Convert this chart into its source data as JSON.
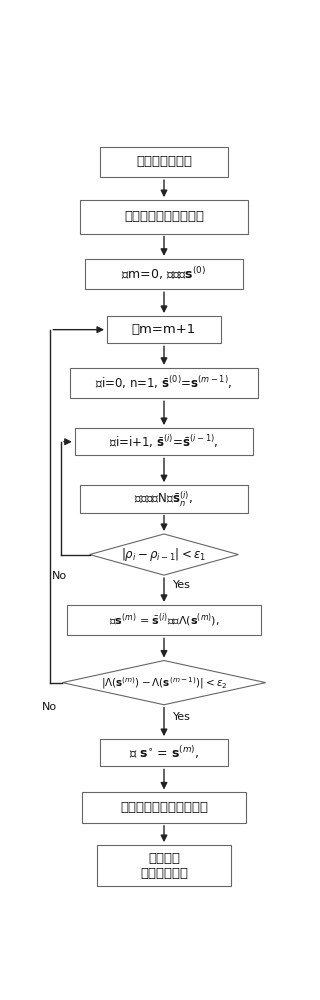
{
  "fig_width": 3.2,
  "fig_height": 10.0,
  "dpi": 100,
  "bg_color": "#ffffff",
  "box_edge": "#666666",
  "arrow_color": "#222222",
  "text_color": "#111111",
  "boxes": {
    "b1": [
      0.5,
      0.945,
      0.52,
      0.04
    ],
    "b2": [
      0.5,
      0.873,
      0.68,
      0.044
    ],
    "b3": [
      0.5,
      0.798,
      0.64,
      0.04
    ],
    "b4": [
      0.5,
      0.725,
      0.46,
      0.036
    ],
    "b5": [
      0.5,
      0.655,
      0.76,
      0.04
    ],
    "b6": [
      0.5,
      0.578,
      0.72,
      0.036
    ],
    "b7": [
      0.5,
      0.503,
      0.68,
      0.036
    ],
    "d1": [
      0.5,
      0.43,
      0.6,
      0.054
    ],
    "b8": [
      0.5,
      0.344,
      0.78,
      0.04
    ],
    "d2": [
      0.5,
      0.262,
      0.82,
      0.058
    ],
    "b9": [
      0.5,
      0.17,
      0.52,
      0.036
    ],
    "b10": [
      0.5,
      0.098,
      0.66,
      0.04
    ],
    "b11": [
      0.5,
      0.022,
      0.54,
      0.054
    ]
  },
  "texts": {
    "b1": "初始化系统参数",
    "b2": "构建优化问题数学模型",
    "b3": "令m=0, 初始化$\\mathbf{s}^{(0)}$",
    "b4": "令m=m+1",
    "b5": "令i=0, n=1, $\\bar{\\mathbf{s}}^{(0)}$=$\\mathbf{s}^{(m-1)}$,",
    "b6": "令i=i+1, $\\bar{\\mathbf{s}}^{(i)}$=$\\bar{\\mathbf{s}}^{(i-1)}$,",
    "b7": "逐元计算N个$\\bar{\\mathbf{s}}_n^{(i)}$,",
    "d1": "$|\\rho_i - \\rho_{i-1}| < \\varepsilon_1$",
    "b8": "令$\\mathbf{s}^{(m)}$ = $\\bar{\\mathbf{s}}^{(i)}$计算$\\Lambda(\\mathbf{s}^{(m)})$,",
    "d2": "$|\\Lambda(\\mathbf{s}^{(m)}) - \\Lambda(\\mathbf{s}^{(m-1)})| < \\varepsilon_2$",
    "b9": "令 $\\mathbf{s}^{\\circ}$ = $\\mathbf{s}^{(m)}$,",
    "b10": "发射优化设计的编码波形",
    "b11": "接收信号\n匹配滤波输出"
  },
  "font_sizes": {
    "b1": 9.5,
    "b2": 9.5,
    "b3": 9.0,
    "b4": 9.5,
    "b5": 8.5,
    "b6": 8.5,
    "b7": 8.5,
    "d1": 8.5,
    "b8": 8.0,
    "d2": 7.5,
    "b9": 9.0,
    "b10": 9.5,
    "b11": 9.5
  }
}
